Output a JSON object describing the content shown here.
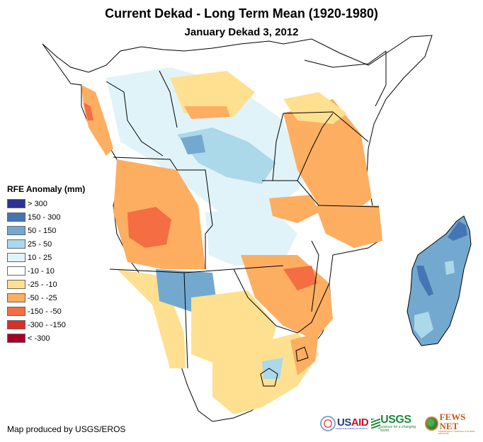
{
  "title": "Current Dekad - Long Term Mean (1920-1980)",
  "subtitle": "January Dekad 3, 2012",
  "legend": {
    "title": "RFE Anomaly (mm)",
    "items": [
      {
        "label": "> 300",
        "color": "#2b3491"
      },
      {
        "label": "150 - 300",
        "color": "#4575b4"
      },
      {
        "label": "50 - 150",
        "color": "#74a9cf"
      },
      {
        "label": "25 - 50",
        "color": "#abd9e9"
      },
      {
        "label": "10 - 25",
        "color": "#e0f3f8"
      },
      {
        "label": "-10 - 10",
        "color": "#ffffff"
      },
      {
        "label": "-25 - -10",
        "color": "#fee090"
      },
      {
        "label": "-50 - -25",
        "color": "#fdae61"
      },
      {
        "label": "-150 - -50",
        "color": "#f46d43"
      },
      {
        "label": "-300 - -150",
        "color": "#d73027"
      },
      {
        "label": "< -300",
        "color": "#a50026"
      }
    ]
  },
  "credit": "Map produced by USGS/EROS",
  "logos": {
    "usaid": {
      "main_a": "US",
      "main_b": "AID",
      "sub": "FROM THE AMERICAN PEOPLE"
    },
    "usgs": {
      "main": "USGS",
      "sub": "science for a changing world"
    },
    "fewsnet": {
      "main": "FEWS NET",
      "sub": "FAMINE EARLY WARNING SYSTEMS NETWORK"
    }
  },
  "map": {
    "region": "Central and Southern Africa",
    "regions": [
      {
        "name": "west-coast-gabon-cameroon",
        "class": "-50 - -25"
      },
      {
        "name": "congo-basin",
        "class": "10 - 25 / 25 - 50"
      },
      {
        "name": "angola-center",
        "class": "-150 - -50"
      },
      {
        "name": "angola",
        "class": "-50 - -25"
      },
      {
        "name": "namibia-botswana-border",
        "class": "50 - 150"
      },
      {
        "name": "tanzania-kenya-coast",
        "class": "-50 - -25"
      },
      {
        "name": "mozambique-zimbabwe",
        "class": "-50 - -25"
      },
      {
        "name": "mozambique-central",
        "class": "-150 - -50"
      },
      {
        "name": "south-africa",
        "class": "-25 - -10"
      },
      {
        "name": "madagascar",
        "class": "50 - 150"
      },
      {
        "name": "madagascar-ne",
        "class": "150 - 300"
      }
    ]
  }
}
